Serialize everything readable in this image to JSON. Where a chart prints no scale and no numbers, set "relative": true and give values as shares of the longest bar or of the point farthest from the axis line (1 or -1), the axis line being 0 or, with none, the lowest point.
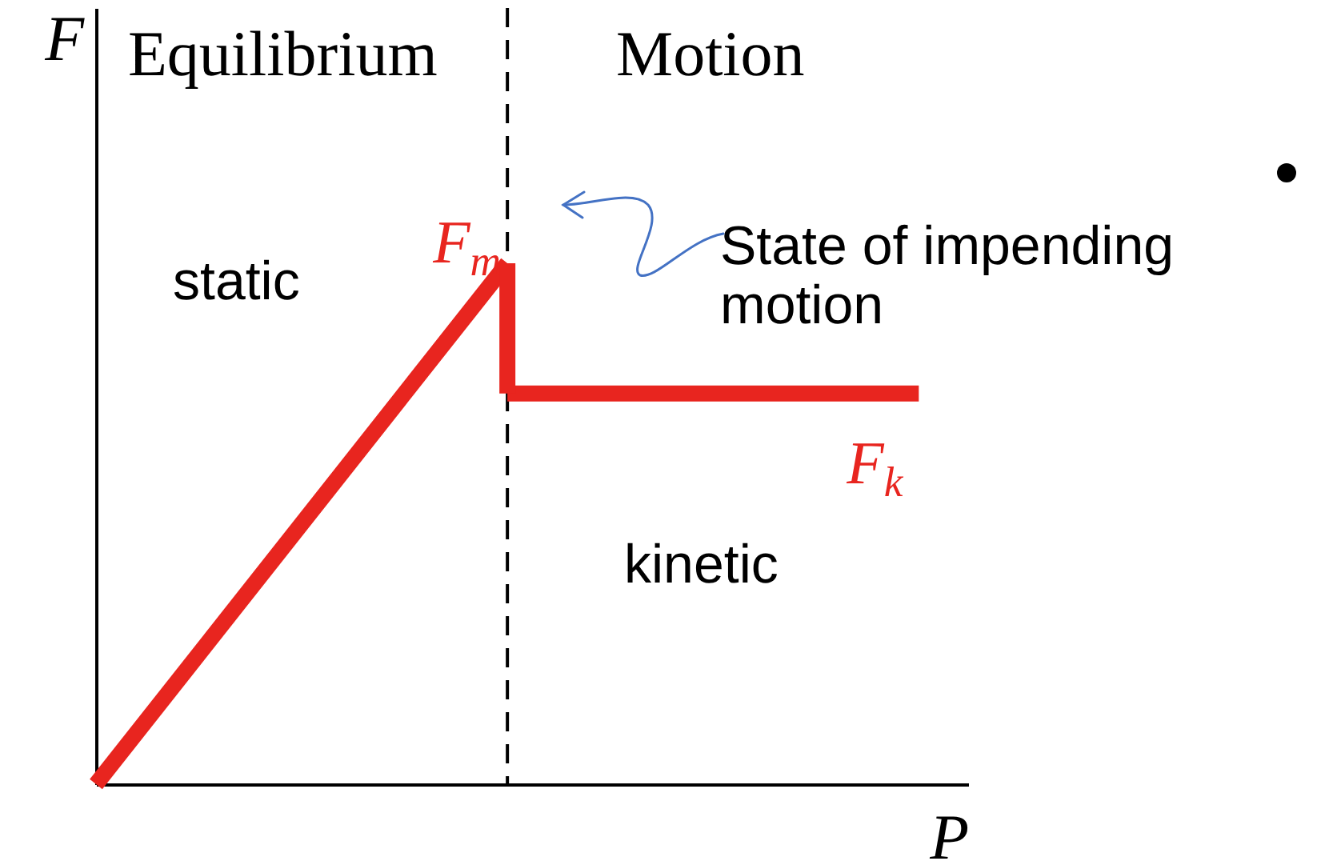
{
  "chart_data": {
    "type": "line",
    "relative": true,
    "xlabel": "P",
    "ylabel": "F",
    "categories": [
      null,
      null,
      null
    ],
    "series": [
      {
        "color": "#e8251f",
        "values": [
          0,
          1,
          null
        ]
      },
      {
        "color": "#e8251f",
        "values": [
          null,
          0.75,
          0.75
        ]
      }
    ],
    "annotations": [
      "Equilibrium",
      "Motion",
      "static",
      "kinetic",
      "F$_{m}$",
      "State of impending motion",
      {
        "text": "F$_{k}$",
        "y": 0.75
      }
    ],
    "marker": "none",
    "line_style": "solid"
  }
}
